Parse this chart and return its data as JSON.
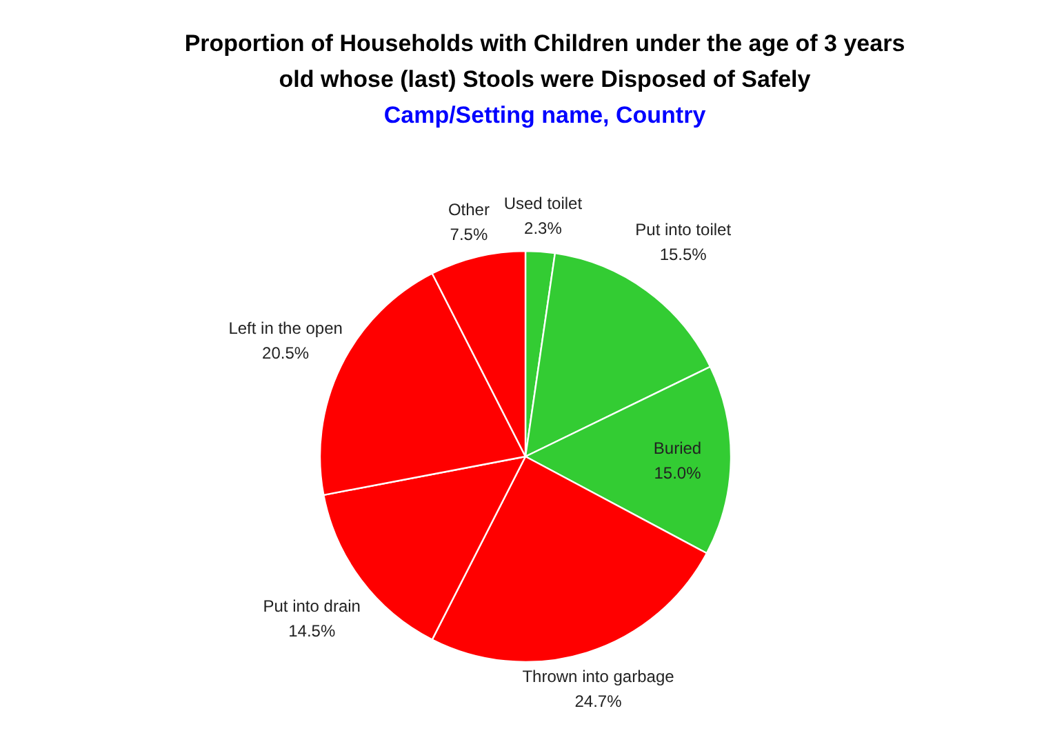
{
  "chart_data": {
    "type": "pie",
    "title": "Proportion of Households with Children under the age of 3 years old whose (last) Stools were Disposed of Safely",
    "subtitle": "Camp/Setting name, Country",
    "categories": [
      "Used toilet",
      "Put into toilet",
      "Buried",
      "Thrown into garbage",
      "Put into drain",
      "Left in the open",
      "Other"
    ],
    "values": [
      2.3,
      15.5,
      15.0,
      24.7,
      14.5,
      20.5,
      7.5
    ],
    "colors": [
      "#33cc33",
      "#33cc33",
      "#33cc33",
      "#ff0000",
      "#ff0000",
      "#ff0000",
      "#ff0000"
    ],
    "value_labels": [
      "2.3%",
      "15.5%",
      "15.0%",
      "24.7%",
      "14.5%",
      "20.5%",
      "7.5%"
    ]
  }
}
